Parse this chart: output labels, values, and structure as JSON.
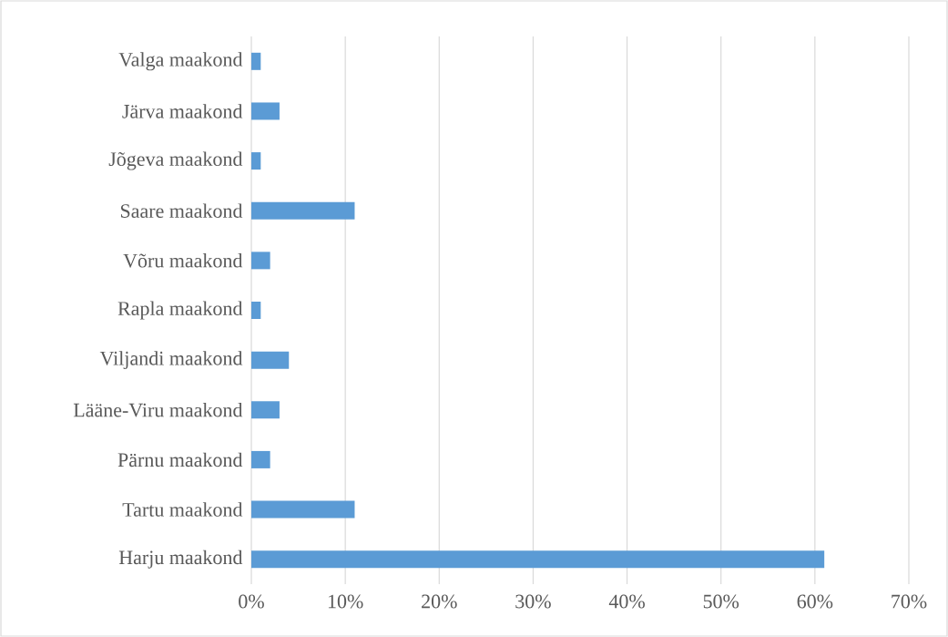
{
  "chart_data": {
    "type": "bar",
    "orientation": "horizontal",
    "categories": [
      "Valga maakond",
      "Järva maakond",
      "Jõgeva maakond",
      "Saare maakond",
      "Võru maakond",
      "Rapla maakond",
      "Viljandi maakond",
      "Lääne-Viru maakond",
      "Pärnu maakond",
      "Tartu maakond",
      "Harju maakond"
    ],
    "values": [
      1,
      3,
      1,
      11,
      2,
      1,
      4,
      3,
      2,
      11,
      61
    ],
    "color": "#5b9bd5",
    "xlim": [
      0,
      70
    ],
    "xticks": [
      {
        "value": 0,
        "label": "0%"
      },
      {
        "value": 10,
        "label": "10%"
      },
      {
        "value": 20,
        "label": "20%"
      },
      {
        "value": 30,
        "label": "30%"
      },
      {
        "value": 40,
        "label": "40%"
      },
      {
        "value": 50,
        "label": "50%"
      },
      {
        "value": 60,
        "label": "60%"
      },
      {
        "value": 70,
        "label": "70%"
      }
    ],
    "grid": "x"
  }
}
